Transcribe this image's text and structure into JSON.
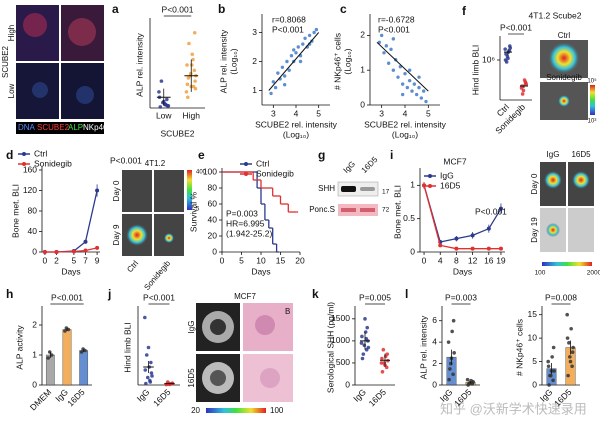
{
  "chart_data": [
    {
      "panel": "a",
      "type": "dot",
      "ylabel": "ALP rel. intensity",
      "xlabel": "SCUBE2",
      "annotations": [
        "P<0.001"
      ],
      "ylim": [
        0,
        8
      ],
      "groups": [
        {
          "name": "Low",
          "color": "#2b3a8f",
          "values": [
            0.1,
            0.3,
            0.5,
            0.2,
            1,
            0.4,
            0.8,
            2.5,
            0.6,
            1.5,
            0.2,
            0.3
          ],
          "mean": 1.0,
          "error": 0.8
        },
        {
          "name": "High",
          "color": "#f0a040",
          "values": [
            1,
            2,
            3,
            2.5,
            4,
            5,
            3.5,
            6,
            2,
            1.5,
            3,
            4.5,
            2.8,
            7,
            3.2,
            1.8,
            2.2,
            4
          ],
          "mean": 3.0,
          "error": 1.5
        }
      ]
    },
    {
      "panel": "b",
      "type": "scatter",
      "ylabel": "ALP rel. intensity",
      "ylabel_unit": "(Log₁₀)",
      "xlabel": "SCUBE2 rel. intensity",
      "xlabel_unit": "(Log₁₀)",
      "annotations": [
        "r=0.8068",
        "P<0.001"
      ],
      "color": "#5b8fd0",
      "xlim": [
        2.5,
        5.5
      ],
      "xticks": [
        3,
        4,
        5
      ],
      "ylim": [
        0.5,
        3.5
      ],
      "yticks": [
        1,
        2,
        3
      ],
      "x": [
        2.9,
        3.0,
        3.1,
        3.2,
        3.3,
        3.4,
        3.5,
        3.6,
        3.7,
        3.8,
        3.9,
        4.0,
        4.1,
        4.2,
        4.3,
        4.4,
        4.5,
        4.6,
        4.7,
        4.8,
        3.5,
        3.9,
        4.2,
        4.6,
        4.9
      ],
      "values": [
        0.9,
        1.3,
        1.1,
        1.6,
        1.4,
        1.8,
        1.5,
        2.0,
        1.7,
        2.2,
        2.0,
        2.3,
        2.5,
        2.2,
        2.6,
        2.8,
        2.5,
        2.9,
        2.7,
        3.0,
        1.2,
        2.4,
        2.0,
        2.6,
        3.1
      ],
      "trend_line": {
        "x": [
          2.8,
          5.0
        ],
        "values": [
          1.0,
          3.0
        ]
      }
    },
    {
      "panel": "c",
      "type": "scatter",
      "ylabel": "# NKp46⁺ cells",
      "ylabel_unit": "(Log₁₀)",
      "xlabel": "SCUBE2 rel. intensity",
      "xlabel_unit": "(Log₁₀)",
      "annotations": [
        "r=-0.6728",
        "P<0.001"
      ],
      "color": "#5b8fd0",
      "xlim": [
        2.5,
        5.5
      ],
      "xticks": [
        3,
        4,
        5
      ],
      "ylim": [
        0,
        2.5
      ],
      "yticks": [
        0,
        1,
        2
      ],
      "x": [
        2.9,
        3.0,
        3.1,
        3.2,
        3.3,
        3.4,
        3.5,
        3.6,
        3.7,
        3.8,
        3.9,
        4.0,
        4.1,
        4.2,
        4.3,
        4.4,
        4.5,
        4.6,
        4.7,
        4.8,
        3.5,
        3.9,
        4.2,
        4.6,
        4.9
      ],
      "values": [
        1.8,
        2.0,
        1.5,
        1.7,
        1.2,
        1.6,
        1.0,
        1.3,
        0.8,
        1.1,
        0.6,
        0.9,
        0.5,
        0.7,
        0.4,
        0.6,
        0.3,
        0.5,
        0.2,
        0.4,
        1.9,
        0.3,
        1.0,
        0.8,
        0.1
      ],
      "trend_line": {
        "x": [
          2.8,
          5.0
        ],
        "values": [
          1.8,
          0.4
        ]
      }
    },
    {
      "panel": "f",
      "type": "dot",
      "title": "4T1.2 Scube2",
      "ylabel": "Hind limb BLI",
      "annotations": [
        "P<0.001"
      ],
      "ylog": true,
      "ylim": [
        10000,
        10000000
      ],
      "yticks": [
        {
          "value": 1000000,
          "label": "10⁶"
        }
      ],
      "groups": [
        {
          "name": "Ctrl",
          "color": "#2b3a8f",
          "values": [
            2000000,
            3000000,
            1500000,
            4000000,
            1000000,
            2500000,
            5000000,
            800000,
            1200000,
            3500000
          ],
          "mean": 2500000,
          "error": 800000
        },
        {
          "name": "Sonidegib",
          "color": "#e03030",
          "values": [
            50000,
            80000,
            30000,
            60000,
            40000,
            100000,
            70000,
            20000
          ],
          "mean": 50000,
          "error": 10000
        }
      ]
    },
    {
      "panel": "d",
      "type": "line",
      "ylabel": "Bone met. BLI",
      "xlabel": "Days",
      "annotations": [
        "P<0.001"
      ],
      "xlim": [
        -0.5,
        9.5
      ],
      "xticks": [
        0,
        2,
        5,
        7,
        9
      ],
      "ylim": [
        0,
        160
      ],
      "yticks": [
        0,
        40,
        80,
        120,
        160
      ],
      "x": [
        0,
        2,
        5,
        7,
        9
      ],
      "series": [
        {
          "name": "Ctrl",
          "color": "#2b3a8f",
          "values": [
            0,
            0,
            2,
            20,
            120
          ],
          "errors": [
            0,
            0,
            1,
            4,
            12
          ]
        },
        {
          "name": "Sonidegib",
          "color": "#e03030",
          "values": [
            0,
            0,
            1,
            3,
            8
          ],
          "errors": [
            0,
            0,
            0.5,
            1,
            3
          ]
        }
      ]
    },
    {
      "panel": "e",
      "type": "step",
      "ylabel": "Survival %",
      "xlabel": "Days",
      "annotations": [
        "P=0.003",
        "HR=6.995",
        "(1.942-25.2)"
      ],
      "xlim": [
        0,
        20
      ],
      "xticks": [
        0,
        5,
        10,
        15,
        20
      ],
      "ylim": [
        0,
        100
      ],
      "yticks": [
        0,
        20,
        40,
        60,
        80,
        100
      ],
      "series": [
        {
          "name": "Ctrl",
          "color": "#2b3a8f",
          "x": [
            0,
            9,
            10,
            11,
            12,
            13,
            14
          ],
          "values": [
            100,
            80,
            60,
            40,
            30,
            10,
            0
          ]
        },
        {
          "name": "Sonidegib",
          "color": "#e03030",
          "x": [
            0,
            8,
            10,
            13,
            15,
            17,
            19
          ],
          "values": [
            100,
            90,
            80,
            70,
            60,
            50,
            50
          ]
        }
      ]
    },
    {
      "panel": "i",
      "type": "line",
      "title": "MCF7",
      "ylabel": "Bone met. BLI",
      "xlabel": "Days",
      "annotations": [
        "P<0.001"
      ],
      "xlim": [
        -1,
        20
      ],
      "xticks": [
        0,
        4,
        8,
        12,
        16,
        19
      ],
      "ylim": [
        0,
        1.2
      ],
      "yticks": [
        0,
        0.5,
        1
      ],
      "x": [
        0,
        4,
        8,
        12,
        16,
        19
      ],
      "series": [
        {
          "name": "IgG",
          "color": "#2b3a8f",
          "values": [
            1,
            0.15,
            0.2,
            0.25,
            0.35,
            0.65
          ],
          "errors": [
            0.05,
            0.03,
            0.04,
            0.05,
            0.06,
            0.08
          ]
        },
        {
          "name": "16D5",
          "color": "#e03030",
          "values": [
            1,
            0.1,
            0.05,
            0.05,
            0.05,
            0.05
          ],
          "errors": [
            0.05,
            0.02,
            0.01,
            0.01,
            0.01,
            0.01
          ]
        }
      ]
    },
    {
      "panel": "h",
      "type": "dot",
      "bar": true,
      "ylabel": "ALP activity",
      "annotations": [
        "P<0.001"
      ],
      "ylim": [
        0,
        2.5
      ],
      "yticks": [
        0,
        1,
        2
      ],
      "groups": [
        {
          "name": "DMEM",
          "color": "#999999",
          "values": [
            0.9,
            1.0,
            1.1
          ],
          "mean": 1.0,
          "error": 0.1
        },
        {
          "name": "IgG",
          "color": "#f0a040",
          "values": [
            1.8,
            1.85,
            1.9
          ],
          "mean": 1.85,
          "error": 0.05
        },
        {
          "name": "16D5",
          "color": "#4a7bc8",
          "values": [
            1.1,
            1.15,
            1.2
          ],
          "mean": 1.15,
          "error": 0.05
        }
      ]
    },
    {
      "panel": "j",
      "type": "dot",
      "ylabel": "Hind limb BLI",
      "annotations": [
        "P<0.001"
      ],
      "ylim": [
        0,
        50
      ],
      "groups": [
        {
          "name": "IgG",
          "color": "#2b3a8f",
          "values": [
            1,
            2,
            5,
            8,
            10,
            12,
            15,
            20,
            25,
            45,
            6,
            3
          ],
          "mean": 12,
          "error": 4
        },
        {
          "name": "16D5",
          "color": "#e03030",
          "values": [
            0.5,
            0.8,
            1,
            1.2,
            0.3,
            0.6,
            0.9,
            2,
            0.4
          ],
          "mean": 0.9,
          "error": 0.3
        }
      ]
    },
    {
      "panel": "k",
      "type": "dot",
      "ylabel": "Serological SHH (pg/ml)",
      "annotations": [
        "P=0.005"
      ],
      "ylim": [
        0,
        1700
      ],
      "yticks": [
        0,
        500,
        1000,
        1500
      ],
      "groups": [
        {
          "name": "IgG",
          "color": "#2b3a8f",
          "values": [
            600,
            800,
            900,
            1000,
            1100,
            1200,
            1300,
            700,
            1500,
            950,
            850,
            1050
          ],
          "mean": 1000,
          "error": 200
        },
        {
          "name": "16D5",
          "color": "#e03030",
          "values": [
            300,
            400,
            500,
            550,
            600,
            650,
            700,
            800,
            450,
            500
          ],
          "mean": 560,
          "error": 150
        }
      ]
    },
    {
      "panel": "l",
      "type": "dot",
      "bar": true,
      "ylabel": "ALP rel. intensity",
      "annotations": [
        "P=0.003"
      ],
      "ylim": [
        0,
        7
      ],
      "yticks": [
        0,
        2,
        4,
        6
      ],
      "groups": [
        {
          "name": "IgG",
          "color": "#4a7bc8",
          "values": [
            0.5,
            1,
            2,
            3,
            4,
            5,
            6,
            1.5,
            2.5
          ],
          "mean": 2.6,
          "error": 0.7
        },
        {
          "name": "16D5",
          "color": "#f0a040",
          "values": [
            0,
            0.1,
            0.2,
            0.3,
            0.5,
            0.4,
            0.2,
            0.1
          ],
          "mean": 0.25,
          "error": 0.1
        }
      ]
    },
    {
      "type": "dot",
      "bar": true,
      "ylabel": "# NKp46⁺ cells",
      "annotations": [
        "P=0.008"
      ],
      "ylim": [
        0,
        16
      ],
      "yticks": [
        0,
        5,
        10,
        15
      ],
      "groups": [
        {
          "name": "IgG",
          "color": "#4a7bc8",
          "values": [
            0,
            1,
            2,
            3,
            4,
            6,
            8,
            2,
            3,
            5
          ],
          "mean": 3.5,
          "error": 1.2
        },
        {
          "name": "16D5",
          "color": "#f0a040",
          "values": [
            2,
            4,
            6,
            8,
            10,
            12,
            7,
            9,
            5,
            15
          ],
          "mean": 8,
          "error": 1.5
        }
      ]
    }
  ],
  "image_texts": {
    "a": {
      "row_label": "SCUBE2",
      "rows": [
        "High",
        "Low"
      ],
      "stains": [
        "DNA",
        "SCUBE2",
        "ALP",
        "NKp46"
      ]
    },
    "f": {
      "groups": [
        "Ctrl",
        "Sonidegib"
      ],
      "scale": [
        "10⁵",
        "10³"
      ]
    },
    "d": {
      "title": "4T1.2",
      "days": [
        "Day 0",
        "Day 9"
      ],
      "groups": [
        "Ctrl",
        "Sonidegib"
      ],
      "scale": [
        "400",
        "5"
      ]
    },
    "g": {
      "panel": "g",
      "columns": [
        "IgG",
        "16D5"
      ],
      "rows": [
        "SHH",
        "Ponc.S"
      ],
      "markers": [
        "17",
        "72"
      ]
    },
    "i": {
      "columns": [
        "IgG",
        "16D5"
      ],
      "days": [
        "Day 0",
        "Day 19"
      ],
      "scale": [
        "100",
        "2000"
      ]
    },
    "j": {
      "title": "MCF7",
      "rows": [
        "IgG",
        "16D5"
      ],
      "region": "B",
      "scale": [
        "20",
        "100"
      ]
    }
  },
  "watermark": "知乎 @沃新学术快速录用"
}
